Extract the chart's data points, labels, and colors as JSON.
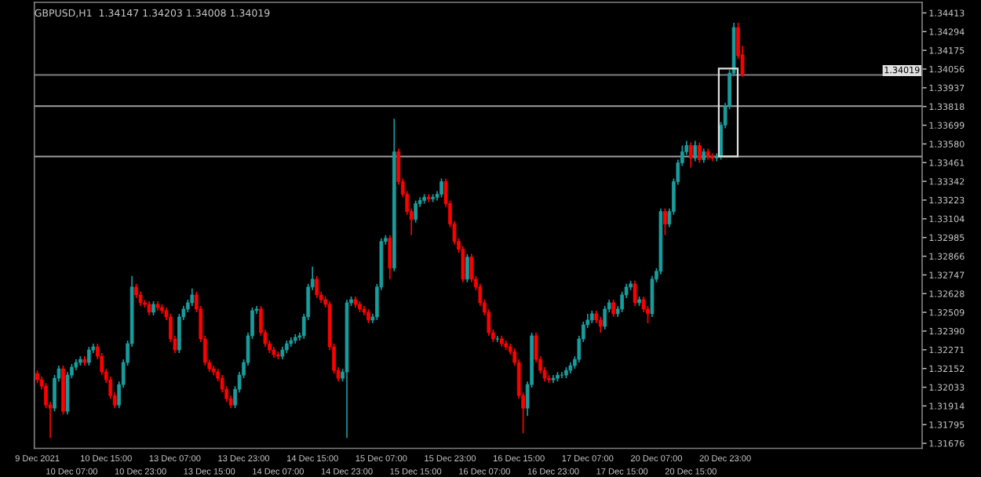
{
  "chart_data": {
    "type": "candlestick",
    "title": "GBPUSD,H1  1.34147 1.34203 1.34008 1.34019",
    "categories": [
      "9 Dec 2021",
      null,
      null,
      null,
      null,
      null,
      null,
      null,
      "10 Dec 07:00",
      null,
      null,
      null,
      null,
      null,
      null,
      null,
      "10 Dec 15:00",
      null,
      null,
      null,
      null,
      null,
      null,
      null,
      "10 Dec 23:00",
      null,
      null,
      null,
      null,
      null,
      null,
      null,
      "13 Dec 07:00",
      null,
      null,
      null,
      null,
      null,
      null,
      null,
      "13 Dec 15:00",
      null,
      null,
      null,
      null,
      null,
      null,
      null,
      "13 Dec 23:00",
      null,
      null,
      null,
      null,
      null,
      null,
      null,
      "14 Dec 07:00",
      null,
      null,
      null,
      null,
      null,
      null,
      null,
      "14 Dec 15:00",
      null,
      null,
      null,
      null,
      null,
      null,
      null,
      "14 Dec 23:00",
      null,
      null,
      null,
      null,
      null,
      null,
      null,
      "15 Dec 07:00",
      null,
      null,
      null,
      null,
      null,
      null,
      null,
      "15 Dec 15:00",
      null,
      null,
      null,
      null,
      null,
      null,
      null,
      "15 Dec 23:00",
      null,
      null,
      null,
      null,
      null,
      null,
      null,
      "16 Dec 07:00",
      null,
      null,
      null,
      null,
      null,
      null,
      null,
      "16 Dec 15:00",
      null,
      null,
      null,
      null,
      null,
      null,
      null,
      "16 Dec 23:00",
      null,
      null,
      null,
      null,
      null,
      null,
      null,
      "17 Dec 07:00",
      null,
      null,
      null,
      null,
      null,
      null,
      null,
      "17 Dec 15:00",
      null,
      null,
      null,
      null,
      null,
      null,
      null,
      "20 Dec 07:00",
      null,
      null,
      null,
      null,
      null,
      null,
      null,
      "20 Dec 15:00",
      null,
      null,
      null,
      null,
      null,
      null,
      null,
      "20 Dec 23:00",
      null,
      null,
      null,
      null,
      null,
      null,
      null,
      null,
      null,
      null,
      null,
      null,
      null,
      null,
      null,
      null,
      null,
      null,
      null,
      null,
      null,
      null,
      null,
      null,
      null,
      null,
      null,
      null,
      null,
      null,
      null,
      null,
      null,
      null,
      null,
      null,
      null,
      null,
      null,
      null,
      null,
      null,
      null,
      null,
      null
    ],
    "ohlc": [
      [
        1.3212,
        1.3214,
        1.3206,
        1.3208
      ],
      [
        1.3208,
        1.321,
        1.3202,
        1.3204
      ],
      [
        1.3204,
        1.3206,
        1.319,
        1.3192
      ],
      [
        1.3192,
        1.3194,
        1.3171,
        1.319
      ],
      [
        1.319,
        1.3211,
        1.3188,
        1.3209
      ],
      [
        1.3209,
        1.3217,
        1.3207,
        1.3215
      ],
      [
        1.3215,
        1.3217,
        1.3186,
        1.3188
      ],
      [
        1.3188,
        1.3213,
        1.3186,
        1.3211
      ],
      [
        1.3211,
        1.3218,
        1.3209,
        1.3216
      ],
      [
        1.3216,
        1.3221,
        1.3214,
        1.3219
      ],
      [
        1.3219,
        1.3223,
        1.3217,
        1.3221
      ],
      [
        1.3221,
        1.3223,
        1.3217,
        1.3219
      ],
      [
        1.3219,
        1.3229,
        1.3217,
        1.3227
      ],
      [
        1.3227,
        1.3231,
        1.3225,
        1.3229
      ],
      [
        1.3229,
        1.3231,
        1.3221,
        1.3223
      ],
      [
        1.3223,
        1.3225,
        1.3211,
        1.3213
      ],
      [
        1.3213,
        1.3215,
        1.3206,
        1.3208
      ],
      [
        1.3208,
        1.321,
        1.3196,
        1.3198
      ],
      [
        1.3198,
        1.32,
        1.319,
        1.3192
      ],
      [
        1.3192,
        1.3207,
        1.319,
        1.3205
      ],
      [
        1.3205,
        1.3221,
        1.3203,
        1.3219
      ],
      [
        1.3219,
        1.3233,
        1.3217,
        1.3231
      ],
      [
        1.3231,
        1.3274,
        1.3229,
        1.3267
      ],
      [
        1.3267,
        1.3269,
        1.326,
        1.3262
      ],
      [
        1.3262,
        1.3264,
        1.3255,
        1.3257
      ],
      [
        1.3257,
        1.3259,
        1.3254,
        1.3256
      ],
      [
        1.3256,
        1.3258,
        1.3249,
        1.3251
      ],
      [
        1.3251,
        1.3258,
        1.3249,
        1.3256
      ],
      [
        1.3256,
        1.3258,
        1.3252,
        1.3254
      ],
      [
        1.3254,
        1.3256,
        1.325,
        1.3252
      ],
      [
        1.3252,
        1.3254,
        1.3246,
        1.3248
      ],
      [
        1.3248,
        1.325,
        1.3232,
        1.3234
      ],
      [
        1.3234,
        1.3236,
        1.3225,
        1.3227
      ],
      [
        1.3227,
        1.325,
        1.3225,
        1.3248
      ],
      [
        1.3248,
        1.3255,
        1.3246,
        1.3253
      ],
      [
        1.3253,
        1.3259,
        1.3251,
        1.3257
      ],
      [
        1.3257,
        1.3266,
        1.3255,
        1.3262
      ],
      [
        1.3262,
        1.3264,
        1.3251,
        1.3253
      ],
      [
        1.3253,
        1.3255,
        1.3232,
        1.3234
      ],
      [
        1.3234,
        1.3236,
        1.3217,
        1.3219
      ],
      [
        1.3219,
        1.3221,
        1.3213,
        1.3215
      ],
      [
        1.3215,
        1.3217,
        1.3211,
        1.3213
      ],
      [
        1.3213,
        1.3215,
        1.3207,
        1.3209
      ],
      [
        1.3209,
        1.3211,
        1.32,
        1.3202
      ],
      [
        1.3202,
        1.3204,
        1.3194,
        1.3196
      ],
      [
        1.3196,
        1.3198,
        1.319,
        1.3192
      ],
      [
        1.3192,
        1.3204,
        1.319,
        1.3202
      ],
      [
        1.3202,
        1.3213,
        1.32,
        1.3211
      ],
      [
        1.3211,
        1.3221,
        1.3209,
        1.3219
      ],
      [
        1.3219,
        1.3238,
        1.3217,
        1.3236
      ],
      [
        1.3236,
        1.3254,
        1.3234,
        1.3252
      ],
      [
        1.3252,
        1.3255,
        1.325,
        1.3253
      ],
      [
        1.3253,
        1.3255,
        1.3236,
        1.3238
      ],
      [
        1.3238,
        1.324,
        1.3229,
        1.3231
      ],
      [
        1.3231,
        1.3233,
        1.3225,
        1.3227
      ],
      [
        1.3227,
        1.3229,
        1.3222,
        1.3224
      ],
      [
        1.3224,
        1.3226,
        1.3221,
        1.3223
      ],
      [
        1.3223,
        1.3229,
        1.3221,
        1.3227
      ],
      [
        1.3227,
        1.3233,
        1.3225,
        1.3231
      ],
      [
        1.3231,
        1.3235,
        1.3229,
        1.3233
      ],
      [
        1.3233,
        1.3237,
        1.3231,
        1.3235
      ],
      [
        1.3235,
        1.3238,
        1.3233,
        1.3236
      ],
      [
        1.3236,
        1.325,
        1.3234,
        1.3248
      ],
      [
        1.3248,
        1.3269,
        1.3246,
        1.3267
      ],
      [
        1.3267,
        1.328,
        1.3265,
        1.3272
      ],
      [
        1.3272,
        1.3274,
        1.326,
        1.3262
      ],
      [
        1.3262,
        1.3264,
        1.3257,
        1.3259
      ],
      [
        1.3259,
        1.3261,
        1.3254,
        1.3256
      ],
      [
        1.3256,
        1.3258,
        1.3227,
        1.3229
      ],
      [
        1.3229,
        1.3231,
        1.3212,
        1.3214
      ],
      [
        1.3214,
        1.3216,
        1.3207,
        1.3209
      ],
      [
        1.3209,
        1.3215,
        1.3207,
        1.3213
      ],
      [
        1.3213,
        1.3259,
        1.3171,
        1.3257
      ],
      [
        1.3257,
        1.3261,
        1.3255,
        1.3259
      ],
      [
        1.3259,
        1.3261,
        1.3254,
        1.3256
      ],
      [
        1.3256,
        1.3258,
        1.3251,
        1.3253
      ],
      [
        1.3253,
        1.3255,
        1.3249,
        1.3251
      ],
      [
        1.3251,
        1.3253,
        1.3244,
        1.3246
      ],
      [
        1.3246,
        1.325,
        1.3244,
        1.3248
      ],
      [
        1.3248,
        1.3269,
        1.3246,
        1.3267
      ],
      [
        1.3267,
        1.3298,
        1.3265,
        1.3296
      ],
      [
        1.3296,
        1.33,
        1.3294,
        1.3298
      ],
      [
        1.3298,
        1.33,
        1.3272,
        1.3279
      ],
      [
        1.3279,
        1.3374,
        1.3277,
        1.3353
      ],
      [
        1.3353,
        1.3355,
        1.3332,
        1.3334
      ],
      [
        1.3334,
        1.3336,
        1.3324,
        1.3326
      ],
      [
        1.3326,
        1.3328,
        1.3313,
        1.3315
      ],
      [
        1.3315,
        1.3317,
        1.33,
        1.331
      ],
      [
        1.331,
        1.3322,
        1.3308,
        1.332
      ],
      [
        1.332,
        1.3324,
        1.3318,
        1.3322
      ],
      [
        1.3322,
        1.3326,
        1.332,
        1.3324
      ],
      [
        1.3324,
        1.3326,
        1.3321,
        1.3323
      ],
      [
        1.3323,
        1.3326,
        1.3321,
        1.3324
      ],
      [
        1.3324,
        1.3328,
        1.3322,
        1.3326
      ],
      [
        1.3326,
        1.3336,
        1.3324,
        1.3334
      ],
      [
        1.3334,
        1.3336,
        1.3318,
        1.332
      ],
      [
        1.332,
        1.3322,
        1.3305,
        1.3307
      ],
      [
        1.3307,
        1.3309,
        1.3294,
        1.3296
      ],
      [
        1.3296,
        1.3298,
        1.3289,
        1.3291
      ],
      [
        1.3291,
        1.3293,
        1.327,
        1.3272
      ],
      [
        1.3272,
        1.3288,
        1.327,
        1.3286
      ],
      [
        1.3286,
        1.3288,
        1.327,
        1.3272
      ],
      [
        1.3272,
        1.3274,
        1.3265,
        1.3267
      ],
      [
        1.3267,
        1.3269,
        1.3255,
        1.3257
      ],
      [
        1.3257,
        1.3259,
        1.3249,
        1.3251
      ],
      [
        1.3251,
        1.3253,
        1.3236,
        1.3238
      ],
      [
        1.3238,
        1.324,
        1.3232,
        1.3234
      ],
      [
        1.3234,
        1.3236,
        1.3232,
        1.3234
      ],
      [
        1.3234,
        1.3236,
        1.3229,
        1.3231
      ],
      [
        1.3231,
        1.3233,
        1.3227,
        1.3229
      ],
      [
        1.3229,
        1.3231,
        1.3224,
        1.3226
      ],
      [
        1.3226,
        1.3228,
        1.3217,
        1.3219
      ],
      [
        1.3219,
        1.3221,
        1.3196,
        1.3198
      ],
      [
        1.3198,
        1.32,
        1.3174,
        1.319
      ],
      [
        1.319,
        1.3207,
        1.3185,
        1.3205
      ],
      [
        1.3205,
        1.3238,
        1.3203,
        1.3236
      ],
      [
        1.3236,
        1.3238,
        1.3219,
        1.3221
      ],
      [
        1.3221,
        1.3223,
        1.3212,
        1.3214
      ],
      [
        1.3214,
        1.3216,
        1.3207,
        1.3209
      ],
      [
        1.3209,
        1.3211,
        1.3206,
        1.3208
      ],
      [
        1.3208,
        1.3211,
        1.3206,
        1.3209
      ],
      [
        1.3209,
        1.3213,
        1.3207,
        1.3211
      ],
      [
        1.3211,
        1.3213,
        1.3209,
        1.3211
      ],
      [
        1.3211,
        1.3216,
        1.3209,
        1.3214
      ],
      [
        1.3214,
        1.3219,
        1.3212,
        1.3217
      ],
      [
        1.3217,
        1.3223,
        1.3215,
        1.3221
      ],
      [
        1.3221,
        1.3236,
        1.3219,
        1.3234
      ],
      [
        1.3234,
        1.3245,
        1.3232,
        1.3243
      ],
      [
        1.3243,
        1.325,
        1.3241,
        1.3246
      ],
      [
        1.3246,
        1.3252,
        1.3244,
        1.325
      ],
      [
        1.325,
        1.3252,
        1.3244,
        1.3246
      ],
      [
        1.3246,
        1.3248,
        1.3238,
        1.3242
      ],
      [
        1.3242,
        1.3255,
        1.324,
        1.3253
      ],
      [
        1.3253,
        1.3259,
        1.3251,
        1.3257
      ],
      [
        1.3257,
        1.3259,
        1.3248,
        1.325
      ],
      [
        1.325,
        1.3255,
        1.3248,
        1.3253
      ],
      [
        1.3253,
        1.3264,
        1.3251,
        1.3262
      ],
      [
        1.3262,
        1.3269,
        1.326,
        1.3267
      ],
      [
        1.3267,
        1.3271,
        1.3265,
        1.3269
      ],
      [
        1.3269,
        1.3271,
        1.3255,
        1.3257
      ],
      [
        1.3257,
        1.3261,
        1.3255,
        1.3259
      ],
      [
        1.3259,
        1.3261,
        1.3251,
        1.3253
      ],
      [
        1.3253,
        1.3255,
        1.3244,
        1.325
      ],
      [
        1.325,
        1.3274,
        1.3248,
        1.3272
      ],
      [
        1.3272,
        1.3279,
        1.327,
        1.3277
      ],
      [
        1.3277,
        1.3317,
        1.3275,
        1.3315
      ],
      [
        1.3315,
        1.3317,
        1.33,
        1.3307
      ],
      [
        1.3307,
        1.3317,
        1.3305,
        1.3315
      ],
      [
        1.3315,
        1.3336,
        1.3313,
        1.3334
      ],
      [
        1.3334,
        1.3348,
        1.3332,
        1.3346
      ],
      [
        1.3346,
        1.3357,
        1.3344,
        1.3353
      ],
      [
        1.3353,
        1.336,
        1.3351,
        1.3357
      ],
      [
        1.3357,
        1.3359,
        1.3343,
        1.3349
      ],
      [
        1.3349,
        1.336,
        1.3347,
        1.3357
      ],
      [
        1.3357,
        1.3359,
        1.3346,
        1.3348
      ],
      [
        1.3348,
        1.3355,
        1.3346,
        1.3353
      ],
      [
        1.3353,
        1.3355,
        1.3348,
        1.335
      ],
      [
        1.335,
        1.3352,
        1.3347,
        1.3349
      ],
      [
        1.3349,
        1.3352,
        1.3347,
        1.335
      ],
      [
        1.335,
        1.3372,
        1.3348,
        1.337
      ],
      [
        1.337,
        1.3384,
        1.3368,
        1.3382
      ],
      [
        1.3382,
        1.3405,
        1.338,
        1.3403
      ],
      [
        1.3403,
        1.3435,
        1.3401,
        1.3432
      ],
      [
        1.3432,
        1.3435,
        1.3412,
        1.3414
      ],
      [
        1.34147,
        1.34203,
        1.34008,
        1.34019
      ],
      null,
      null,
      null,
      null,
      null,
      null,
      null,
      null,
      null,
      null,
      null,
      null,
      null,
      null,
      null,
      null,
      null,
      null,
      null,
      null,
      null,
      null,
      null,
      null,
      null,
      null,
      null,
      null,
      null,
      null,
      null,
      null,
      null,
      null,
      null,
      null,
      null,
      null,
      null,
      null,
      null
    ],
    "colors": [
      "#ff0000",
      "#ff0000",
      "#ff0000",
      "#ff0000",
      "#1a9c9c",
      "#1a9c9c",
      "#ff0000",
      "#1a9c9c",
      "#1a9c9c",
      "#1a9c9c",
      "#1a9c9c",
      "#ff0000",
      "#1a9c9c",
      "#1a9c9c",
      "#ff0000",
      "#ff0000",
      "#ff0000",
      "#ff0000",
      "#ff0000",
      "#1a9c9c",
      "#1a9c9c",
      "#1a9c9c",
      "#1a9c9c",
      "#ff0000",
      "#ff0000",
      "#ff0000",
      "#ff0000",
      "#1a9c9c",
      "#ff0000",
      "#ff0000",
      "#ff0000",
      "#ff0000",
      "#ff0000",
      "#1a9c9c",
      "#1a9c9c",
      "#1a9c9c",
      "#1a9c9c",
      "#ff0000",
      "#ff0000",
      "#ff0000",
      "#ff0000",
      "#ff0000",
      "#ff0000",
      "#ff0000",
      "#ff0000",
      "#ff0000",
      "#1a9c9c",
      "#1a9c9c",
      "#1a9c9c",
      "#1a9c9c",
      "#1a9c9c",
      "#1a9c9c",
      "#ff0000",
      "#ff0000",
      "#ff0000",
      "#ff0000",
      "#ff0000",
      "#1a9c9c",
      "#1a9c9c",
      "#1a9c9c",
      "#1a9c9c",
      "#1a9c9c",
      "#1a9c9c",
      "#1a9c9c",
      "#1a9c9c",
      "#ff0000",
      "#ff0000",
      "#ff0000",
      "#ff0000",
      "#ff0000",
      "#ff0000",
      "#1a9c9c",
      "#1a9c9c",
      "#1a9c9c",
      "#ff0000",
      "#ff0000",
      "#ff0000",
      "#ff0000",
      "#1a9c9c",
      "#1a9c9c",
      "#1a9c9c",
      "#1a9c9c",
      "#ff0000",
      "#1a9c9c",
      "#ff0000",
      "#ff0000",
      "#ff0000",
      "#ff0000",
      "#1a9c9c",
      "#1a9c9c",
      "#1a9c9c",
      "#ff0000",
      "#1a9c9c",
      "#1a9c9c",
      "#1a9c9c",
      "#ff0000",
      "#ff0000",
      "#ff0000",
      "#ff0000",
      "#ff0000",
      "#1a9c9c",
      "#ff0000",
      "#ff0000",
      "#ff0000",
      "#ff0000",
      "#ff0000",
      "#ff0000",
      "#1a9c9c",
      "#ff0000",
      "#ff0000",
      "#ff0000",
      "#ff0000",
      "#ff0000",
      "#ff0000",
      "#1a9c9c",
      "#1a9c9c",
      "#ff0000",
      "#ff0000",
      "#ff0000",
      "#ff0000",
      "#1a9c9c",
      "#1a9c9c",
      "#1a9c9c",
      "#1a9c9c",
      "#1a9c9c",
      "#1a9c9c",
      "#1a9c9c",
      "#1a9c9c",
      "#1a9c9c",
      "#1a9c9c",
      "#ff0000",
      "#ff0000",
      "#1a9c9c",
      "#1a9c9c",
      "#ff0000",
      "#1a9c9c",
      "#1a9c9c",
      "#1a9c9c",
      "#1a9c9c",
      "#ff0000",
      "#1a9c9c",
      "#ff0000",
      "#ff0000",
      "#1a9c9c",
      "#1a9c9c",
      "#1a9c9c",
      "#ff0000",
      "#1a9c9c",
      "#1a9c9c",
      "#1a9c9c",
      "#1a9c9c",
      "#1a9c9c",
      "#ff0000",
      "#1a9c9c",
      "#ff0000",
      "#1a9c9c",
      "#ff0000",
      "#ff0000",
      "#1a9c9c",
      "#1a9c9c",
      "#1a9c9c",
      "#1a9c9c",
      "#1a9c9c",
      "#ff0000",
      "#ff0000",
      null,
      null,
      null,
      null,
      null,
      null,
      null,
      null,
      null,
      null,
      null,
      null,
      null,
      null,
      null,
      null,
      null,
      null,
      null,
      null,
      null,
      null,
      null,
      null,
      null,
      null,
      null,
      null,
      null,
      null,
      null,
      null,
      null,
      null,
      null,
      null,
      null,
      null,
      null,
      null,
      null
    ],
    "ylim": [
      1.31644,
      1.3448
    ],
    "yticks": [
      1.34413,
      1.34294,
      1.34175,
      1.34056,
      1.33937,
      1.33818,
      1.33699,
      {
        "value": 1.3358,
        "label": "1.33580"
      },
      1.33461,
      1.33342,
      1.33223,
      1.33104,
      1.32985,
      1.32866,
      1.32747,
      1.32628,
      1.32509,
      {
        "value": 1.3239,
        "label": "1.32390"
      },
      1.32271,
      1.32152,
      1.32033,
      1.31914,
      1.31795,
      1.31676
    ],
    "ref_lines": [
      {
        "axis": "y",
        "value": 1.34019,
        "label": "1.34019",
        "color": "#7f7f7f"
      },
      {
        "axis": "y",
        "value": 1.3382,
        "color": "#a0a0a0"
      },
      {
        "axis": "y",
        "value": 1.335,
        "color": "#a0a0a0"
      }
    ],
    "grid": false,
    "legend": false
  }
}
